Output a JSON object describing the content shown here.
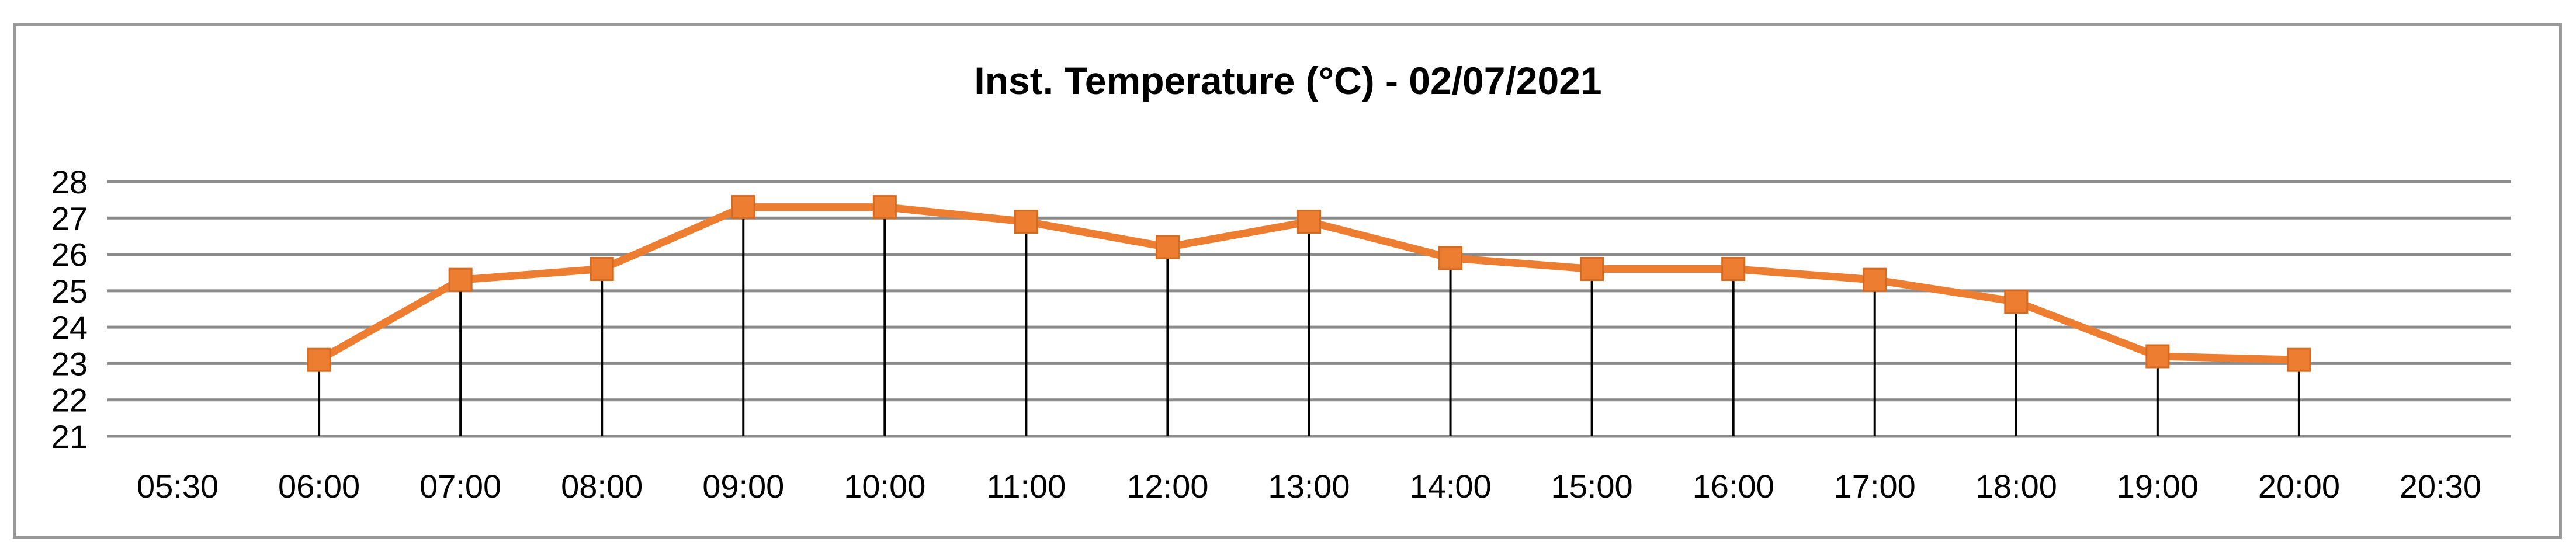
{
  "chart_data": {
    "type": "line",
    "title": "Inst. Temperature (°C) - 02/07/2021",
    "categories": [
      "05:30",
      "06:00",
      "07:00",
      "08:00",
      "09:00",
      "10:00",
      "11:00",
      "12:00",
      "13:00",
      "14:00",
      "15:00",
      "16:00",
      "17:00",
      "18:00",
      "19:00",
      "20:00",
      "20:30"
    ],
    "series": [
      {
        "values": [
          null,
          23.1,
          25.3,
          25.6,
          27.3,
          27.3,
          26.9,
          26.2,
          26.9,
          25.9,
          25.6,
          25.6,
          25.3,
          24.7,
          23.2,
          23.1,
          null
        ]
      }
    ],
    "ylim": [
      21,
      28
    ],
    "yticks": [
      21,
      22,
      23,
      24,
      25,
      26,
      27,
      28
    ],
    "grid": true,
    "drop_lines": true,
    "legend": "none",
    "colors": {
      "line": "#ED7D31",
      "marker": "#ED7D31",
      "grid": "#8c8c8c",
      "axis": "#8c8c8c",
      "drop_line": "#000000"
    }
  }
}
